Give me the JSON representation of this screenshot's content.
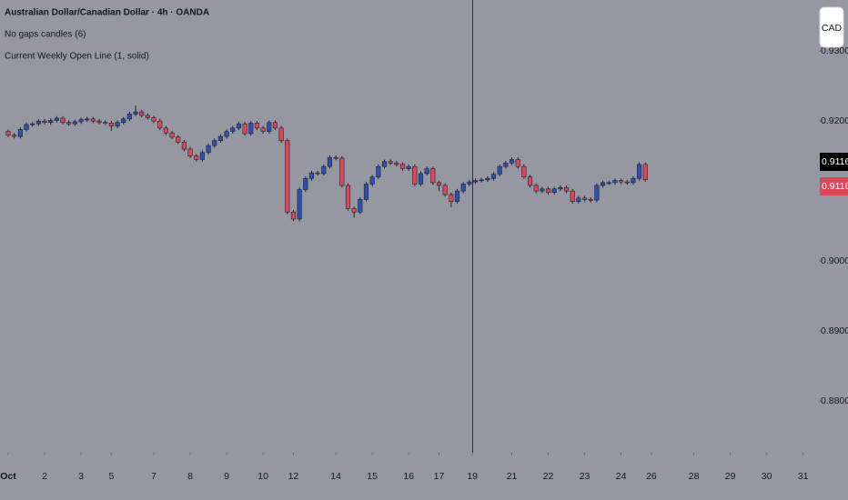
{
  "chart_data": {
    "type": "candlestick",
    "title": "Australian Dollar/Canadian Dollar · 4h · OANDA",
    "indicators": [
      "No gaps candles (6)",
      "Current Weekly Open Line (1, solid)"
    ],
    "currency_button": "CAD",
    "up_color": "#2e50b4",
    "down_color": "#e0465a",
    "xlim": [
      -1.35,
      133.6
    ],
    "ylim": [
      0.8726,
      0.9373
    ],
    "yticks": [
      {
        "value": 0.88,
        "label": "0.88000"
      },
      {
        "value": 0.89,
        "label": "0.89000"
      },
      {
        "value": 0.9,
        "label": "0.90000"
      },
      {
        "value": 0.91,
        "label": "0.91000"
      },
      {
        "value": 0.92,
        "label": "0.92000"
      },
      {
        "value": 0.93,
        "label": "0.93000"
      }
    ],
    "xticks": [
      {
        "value": 0,
        "label": "Oct"
      },
      {
        "value": 6,
        "label": "2"
      },
      {
        "value": 12,
        "label": "3"
      },
      {
        "value": 17,
        "label": "5"
      },
      {
        "value": 24,
        "label": "7"
      },
      {
        "value": 30,
        "label": "8"
      },
      {
        "value": 36,
        "label": "9"
      },
      {
        "value": 42,
        "label": "10"
      },
      {
        "value": 47,
        "label": "12"
      },
      {
        "value": 54,
        "label": "14"
      },
      {
        "value": 60,
        "label": "15"
      },
      {
        "value": 66,
        "label": "16"
      },
      {
        "value": 71,
        "label": "17"
      },
      {
        "value": 76.5,
        "label": "19"
      },
      {
        "value": 83,
        "label": "21"
      },
      {
        "value": 89,
        "label": "22"
      },
      {
        "value": 95,
        "label": "23"
      },
      {
        "value": 101,
        "label": "24"
      },
      {
        "value": 106,
        "label": "26"
      },
      {
        "value": 113,
        "label": "28"
      },
      {
        "value": 119,
        "label": "29"
      },
      {
        "value": 125,
        "label": "30"
      },
      {
        "value": 131,
        "label": "31"
      }
    ],
    "price_labels": [
      0.91162,
      0.91162
    ],
    "candles": [
      [
        0.9185,
        0.9188,
        0.9177,
        0.918
      ],
      [
        0.918,
        0.9183,
        0.9175,
        0.9178
      ],
      [
        0.9178,
        0.9191,
        0.9175,
        0.9188
      ],
      [
        0.9188,
        0.9198,
        0.9185,
        0.9195
      ],
      [
        0.9195,
        0.9199,
        0.9192,
        0.9196
      ],
      [
        0.9196,
        0.9203,
        0.9193,
        0.92
      ],
      [
        0.92,
        0.9203,
        0.9195,
        0.9198
      ],
      [
        0.9198,
        0.9204,
        0.9195,
        0.9201
      ],
      [
        0.9201,
        0.9207,
        0.9198,
        0.9204
      ],
      [
        0.9204,
        0.9207,
        0.9195,
        0.9198
      ],
      [
        0.9198,
        0.9201,
        0.9193,
        0.9196
      ],
      [
        0.9196,
        0.9202,
        0.9193,
        0.9199
      ],
      [
        0.9199,
        0.9205,
        0.9196,
        0.9202
      ],
      [
        0.9202,
        0.9206,
        0.9199,
        0.9203
      ],
      [
        0.9203,
        0.9206,
        0.9197,
        0.92
      ],
      [
        0.92,
        0.9203,
        0.9195,
        0.9198
      ],
      [
        0.9198,
        0.9201,
        0.9194,
        0.9197
      ],
      [
        0.9197,
        0.92,
        0.9186,
        0.9193
      ],
      [
        0.9193,
        0.9201,
        0.919,
        0.9198
      ],
      [
        0.9198,
        0.9206,
        0.9195,
        0.9203
      ],
      [
        0.9203,
        0.9213,
        0.92,
        0.921
      ],
      [
        0.921,
        0.9222,
        0.9207,
        0.9213
      ],
      [
        0.9213,
        0.9216,
        0.9205,
        0.9208
      ],
      [
        0.9208,
        0.9211,
        0.9202,
        0.9205
      ],
      [
        0.9205,
        0.9208,
        0.9197,
        0.92
      ],
      [
        0.92,
        0.9203,
        0.9187,
        0.919
      ],
      [
        0.919,
        0.9193,
        0.918,
        0.9183
      ],
      [
        0.9183,
        0.9186,
        0.9174,
        0.9177
      ],
      [
        0.9177,
        0.918,
        0.9167,
        0.917
      ],
      [
        0.917,
        0.9173,
        0.9157,
        0.916
      ],
      [
        0.916,
        0.9163,
        0.9147,
        0.915
      ],
      [
        0.915,
        0.9153,
        0.9142,
        0.9145
      ],
      [
        0.9145,
        0.9158,
        0.9142,
        0.9155
      ],
      [
        0.9155,
        0.9168,
        0.9152,
        0.9165
      ],
      [
        0.9165,
        0.9175,
        0.9162,
        0.9172
      ],
      [
        0.9172,
        0.9181,
        0.9169,
        0.9178
      ],
      [
        0.9178,
        0.9188,
        0.9175,
        0.9185
      ],
      [
        0.9185,
        0.9193,
        0.9182,
        0.919
      ],
      [
        0.919,
        0.9199,
        0.9187,
        0.9196
      ],
      [
        0.9196,
        0.9199,
        0.9179,
        0.9182
      ],
      [
        0.9182,
        0.92,
        0.9179,
        0.9197
      ],
      [
        0.9197,
        0.92,
        0.9187,
        0.919
      ],
      [
        0.919,
        0.9193,
        0.9182,
        0.9185
      ],
      [
        0.9185,
        0.9201,
        0.9182,
        0.9198
      ],
      [
        0.9198,
        0.9201,
        0.9187,
        0.919
      ],
      [
        0.919,
        0.9193,
        0.9169,
        0.9172
      ],
      [
        0.9172,
        0.9175,
        0.9067,
        0.907
      ],
      [
        0.907,
        0.9073,
        0.9057,
        0.906
      ],
      [
        0.906,
        0.9105,
        0.9057,
        0.9102
      ],
      [
        0.9102,
        0.9121,
        0.9099,
        0.9118
      ],
      [
        0.9118,
        0.9129,
        0.9115,
        0.9126
      ],
      [
        0.9126,
        0.9129,
        0.9122,
        0.9125
      ],
      [
        0.9125,
        0.9138,
        0.9122,
        0.9135
      ],
      [
        0.9135,
        0.9151,
        0.9132,
        0.9148
      ],
      [
        0.9148,
        0.9151,
        0.9144,
        0.9147
      ],
      [
        0.9147,
        0.915,
        0.9105,
        0.9108
      ],
      [
        0.9108,
        0.9111,
        0.9072,
        0.9075
      ],
      [
        0.9075,
        0.9078,
        0.9062,
        0.907
      ],
      [
        0.907,
        0.9091,
        0.9067,
        0.9088
      ],
      [
        0.9088,
        0.9113,
        0.9085,
        0.911
      ],
      [
        0.911,
        0.9123,
        0.9107,
        0.912
      ],
      [
        0.912,
        0.9138,
        0.9117,
        0.9135
      ],
      [
        0.9135,
        0.9145,
        0.9132,
        0.9142
      ],
      [
        0.9142,
        0.9145,
        0.9137,
        0.914
      ],
      [
        0.914,
        0.9143,
        0.9135,
        0.9138
      ],
      [
        0.9138,
        0.9141,
        0.9129,
        0.9132
      ],
      [
        0.9132,
        0.9138,
        0.9129,
        0.9135
      ],
      [
        0.9135,
        0.9138,
        0.9107,
        0.911
      ],
      [
        0.911,
        0.9128,
        0.9107,
        0.9125
      ],
      [
        0.9125,
        0.9135,
        0.9122,
        0.9132
      ],
      [
        0.9132,
        0.9135,
        0.9109,
        0.9112
      ],
      [
        0.9112,
        0.9115,
        0.91,
        0.9108
      ],
      [
        0.9108,
        0.9111,
        0.9092,
        0.9095
      ],
      [
        0.9095,
        0.9098,
        0.9077,
        0.9085
      ],
      [
        0.9085,
        0.9103,
        0.9082,
        0.91
      ],
      [
        0.91,
        0.9113,
        0.9097,
        0.911
      ],
      [
        0.911,
        0.9116,
        0.9107,
        0.9113
      ],
      [
        0.9113,
        0.9118,
        0.911,
        0.9115
      ],
      [
        0.9115,
        0.9119,
        0.9112,
        0.9116
      ],
      [
        0.9116,
        0.9121,
        0.9113,
        0.9118
      ],
      [
        0.9118,
        0.9127,
        0.9115,
        0.9124
      ],
      [
        0.9124,
        0.9138,
        0.9121,
        0.9135
      ],
      [
        0.9135,
        0.9143,
        0.9132,
        0.914
      ],
      [
        0.914,
        0.9148,
        0.9137,
        0.9145
      ],
      [
        0.9145,
        0.9148,
        0.9132,
        0.9135
      ],
      [
        0.9135,
        0.9138,
        0.9117,
        0.912
      ],
      [
        0.912,
        0.9123,
        0.9105,
        0.9108
      ],
      [
        0.9108,
        0.9111,
        0.9097,
        0.91
      ],
      [
        0.91,
        0.9106,
        0.9097,
        0.9103
      ],
      [
        0.9103,
        0.9106,
        0.9095,
        0.9098
      ],
      [
        0.9098,
        0.9106,
        0.9095,
        0.9103
      ],
      [
        0.9103,
        0.9108,
        0.91,
        0.9105
      ],
      [
        0.9105,
        0.9108,
        0.9097,
        0.91
      ],
      [
        0.91,
        0.9103,
        0.9082,
        0.9085
      ],
      [
        0.9085,
        0.9093,
        0.9082,
        0.909
      ],
      [
        0.909,
        0.9093,
        0.9085,
        0.9088
      ],
      [
        0.9088,
        0.9091,
        0.9084,
        0.9087
      ],
      [
        0.9087,
        0.9111,
        0.9084,
        0.9108
      ],
      [
        0.9108,
        0.9115,
        0.9105,
        0.9112
      ],
      [
        0.9112,
        0.9115,
        0.9109,
        0.9112
      ],
      [
        0.9112,
        0.9118,
        0.9109,
        0.9115
      ],
      [
        0.9115,
        0.9118,
        0.911,
        0.9113
      ],
      [
        0.9113,
        0.9116,
        0.9109,
        0.9112
      ],
      [
        0.9112,
        0.9121,
        0.9109,
        0.9118
      ],
      [
        0.9118,
        0.9141,
        0.9115,
        0.9138
      ],
      [
        0.9138,
        0.9141,
        0.9113,
        0.91162
      ]
    ]
  }
}
